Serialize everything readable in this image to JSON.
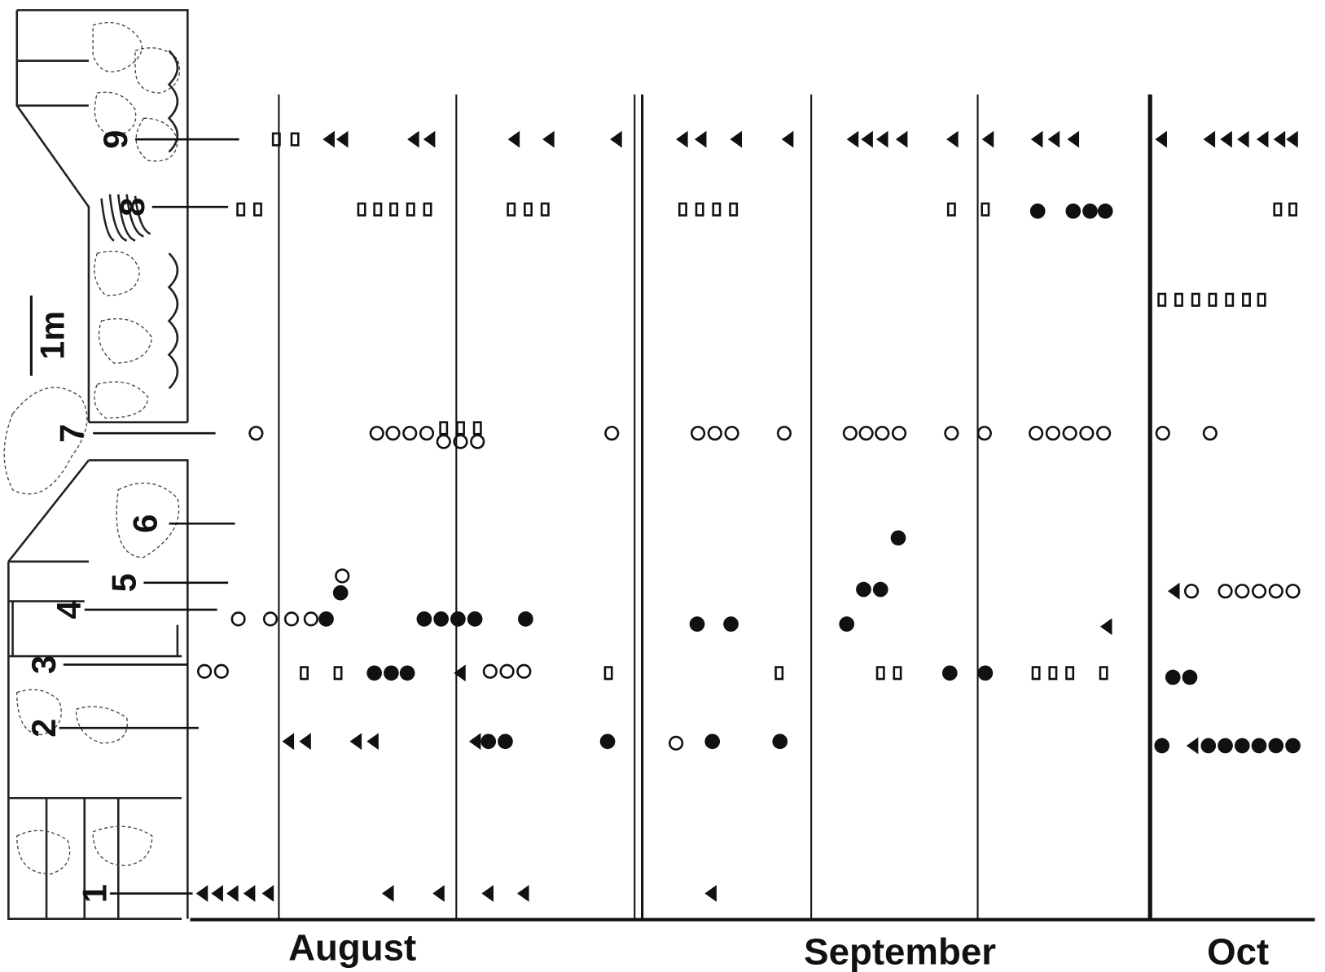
{
  "scale_label": "1m",
  "sites": [
    "1",
    "2",
    "3",
    "4",
    "5",
    "6",
    "7",
    "8",
    "9"
  ],
  "months": [
    "August",
    "September",
    "Oct"
  ]
}
